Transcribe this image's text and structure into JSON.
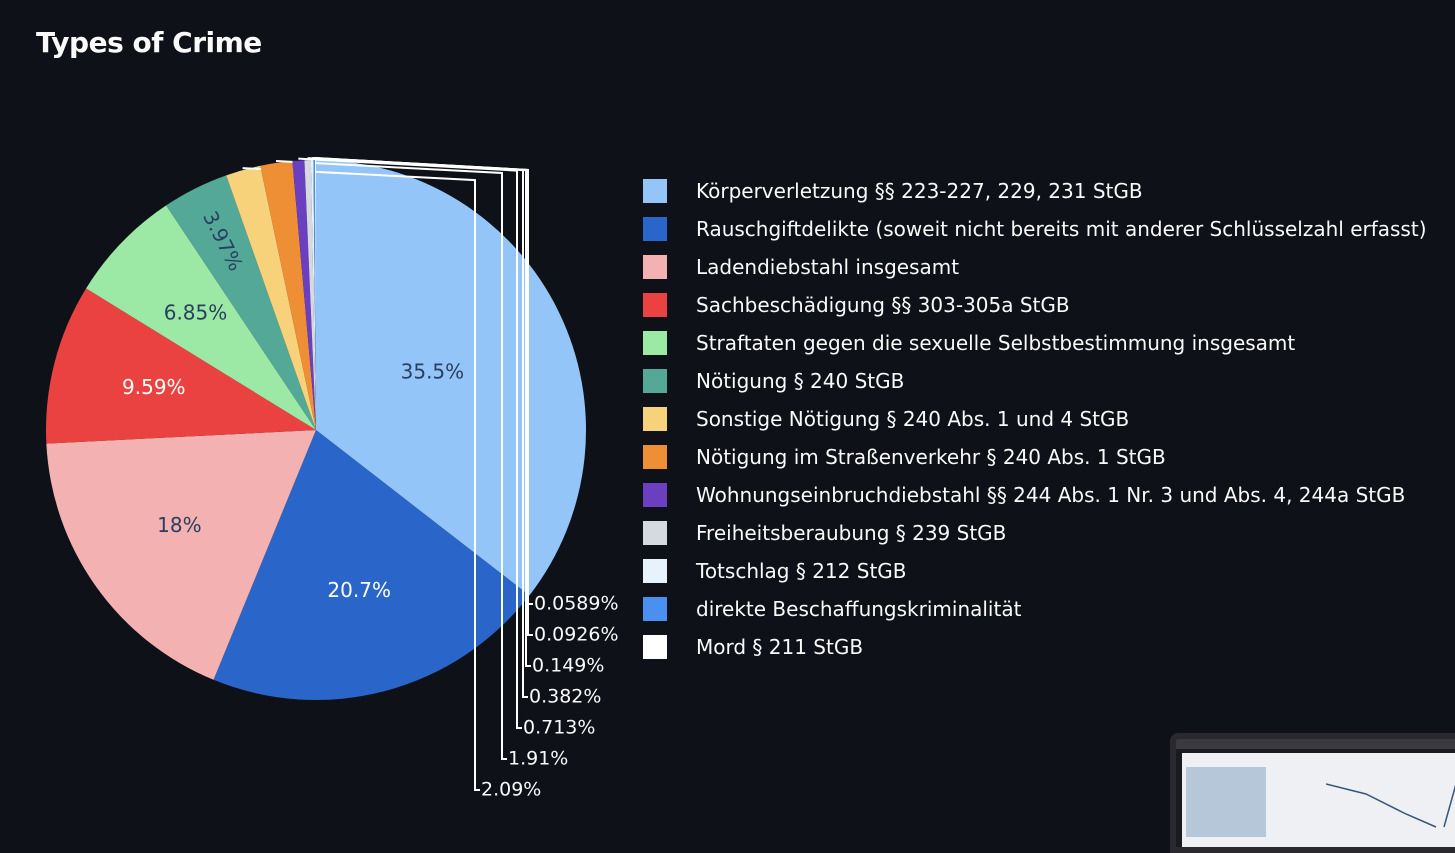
{
  "page": {
    "title": "Types of Crime"
  },
  "chart_data": {
    "type": "pie",
    "title": "Types of Crime",
    "legend_position": "right",
    "slices": [
      {
        "label": "Körperverletzung §§ 223-227, 229, 231 StGB",
        "value": 35.5,
        "text": "35.5%",
        "color": "#93c5f8",
        "text_color": "#2a3f5f",
        "text_pos": "inside"
      },
      {
        "label": "Rauschgiftdelikte (soweit nicht bereits mit anderer Schlüsselzahl erfasst)",
        "value": 20.7,
        "text": "20.7%",
        "color": "#2a66c9",
        "text_color": "#ffffff",
        "text_pos": "inside"
      },
      {
        "label": "Ladendiebstahl insgesamt",
        "value": 18,
        "text": "18%",
        "color": "#f4b1b1",
        "text_color": "#2a3f5f",
        "text_pos": "inside"
      },
      {
        "label": "Sachbeschädigung §§ 303-305a StGB",
        "value": 9.59,
        "text": "9.59%",
        "color": "#ea4240",
        "text_color": "#ffffff",
        "text_pos": "inside"
      },
      {
        "label": "Straftaten gegen die sexuelle Selbstbestimmung insgesamt",
        "value": 6.85,
        "text": "6.85%",
        "color": "#9be9a5",
        "text_color": "#2a3f5f",
        "text_pos": "inside"
      },
      {
        "label": "Nötigung § 240 StGB",
        "value": 3.97,
        "text": "3.97%",
        "color": "#54a897",
        "text_color": "#2a3f5f",
        "text_pos": "inside-rotated"
      },
      {
        "label": "Sonstige Nötigung § 240 Abs. 1 und 4 StGB",
        "value": 2.09,
        "text": "2.09%",
        "color": "#f7d27a",
        "text_color": "#fafafa",
        "text_pos": "outside"
      },
      {
        "label": "Nötigung im Straßenverkehr § 240 Abs. 1 StGB",
        "value": 1.91,
        "text": "1.91%",
        "color": "#ee8e35",
        "text_color": "#fafafa",
        "text_pos": "outside"
      },
      {
        "label": "Wohnungseinbruchdiebstahl §§ 244 Abs. 1 Nr. 3 und Abs. 4, 244a StGB",
        "value": 0.713,
        "text": "0.713%",
        "color": "#6a3fc0",
        "text_color": "#fafafa",
        "text_pos": "outside"
      },
      {
        "label": "Freiheitsberaubung § 239 StGB",
        "value": 0.382,
        "text": "0.382%",
        "color": "#d5d9e0",
        "text_color": "#fafafa",
        "text_pos": "outside"
      },
      {
        "label": "Totschlag § 212 StGB",
        "value": 0.149,
        "text": "0.149%",
        "color": "#e7f2fd",
        "text_color": "#fafafa",
        "text_pos": "outside"
      },
      {
        "label": "direkte Beschaffungskriminalität",
        "value": 0.0926,
        "text": "0.0926%",
        "color": "#4a90f0",
        "text_color": "#fafafa",
        "text_pos": "outside"
      },
      {
        "label": "Mord § 211 StGB",
        "value": 0.0589,
        "text": "0.0589%",
        "color": "#ffffff",
        "text_color": "#fafafa",
        "text_pos": "outside"
      }
    ]
  }
}
